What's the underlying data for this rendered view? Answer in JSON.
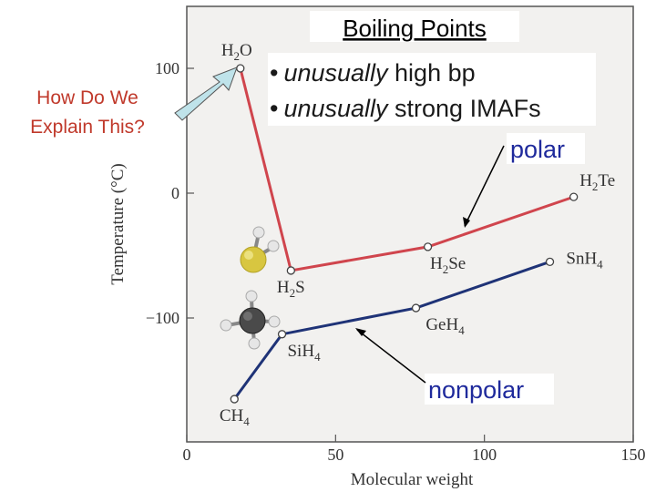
{
  "chart_data": {
    "type": "line",
    "title": "Boiling Points",
    "xlabel": "Molecular weight",
    "ylabel": "Temperature (°C)",
    "xlim": [
      0,
      150
    ],
    "ylim": [
      -185,
      150
    ],
    "x_ticks": [
      0,
      50,
      100,
      150
    ],
    "y_ticks": [
      100,
      0,
      -100
    ],
    "y_tick_labels": [
      "100",
      "0",
      "−100"
    ],
    "grid": false,
    "series": [
      {
        "color": "#d0454d",
        "points": [
          {
            "x": 18,
            "y": 100,
            "label": "H2O"
          },
          {
            "x": 35,
            "y": -62,
            "label": "H2S"
          },
          {
            "x": 81,
            "y": -43,
            "label": "H2Se"
          },
          {
            "x": 130,
            "y": -3,
            "label": "H2Te"
          }
        ]
      },
      {
        "color": "#1f3377",
        "points": [
          {
            "x": 16,
            "y": -165,
            "label": "CH4"
          },
          {
            "x": 32,
            "y": -113,
            "label": "SiH4"
          },
          {
            "x": 77,
            "y": -92,
            "label": "GeH4"
          },
          {
            "x": 122,
            "y": -55,
            "label": "SnH4"
          }
        ]
      }
    ]
  },
  "annotations": {
    "question": [
      "How Do We",
      "Explain This?"
    ],
    "bullet1_emph": "unusually",
    "bullet1_rest": " high bp",
    "bullet2_emph": "unusually",
    "bullet2_rest": " strong IMAFs",
    "polar": "polar",
    "nonpolar": "nonpolar"
  },
  "colors": {
    "polar_line": "#d0454d",
    "nonpolar_line": "#1f3377",
    "question_text": "#c0392b",
    "label_blue": "#1f2a9c",
    "plot_bg": "#f2f1ef",
    "arrow_fill": "#bfe3ea"
  }
}
